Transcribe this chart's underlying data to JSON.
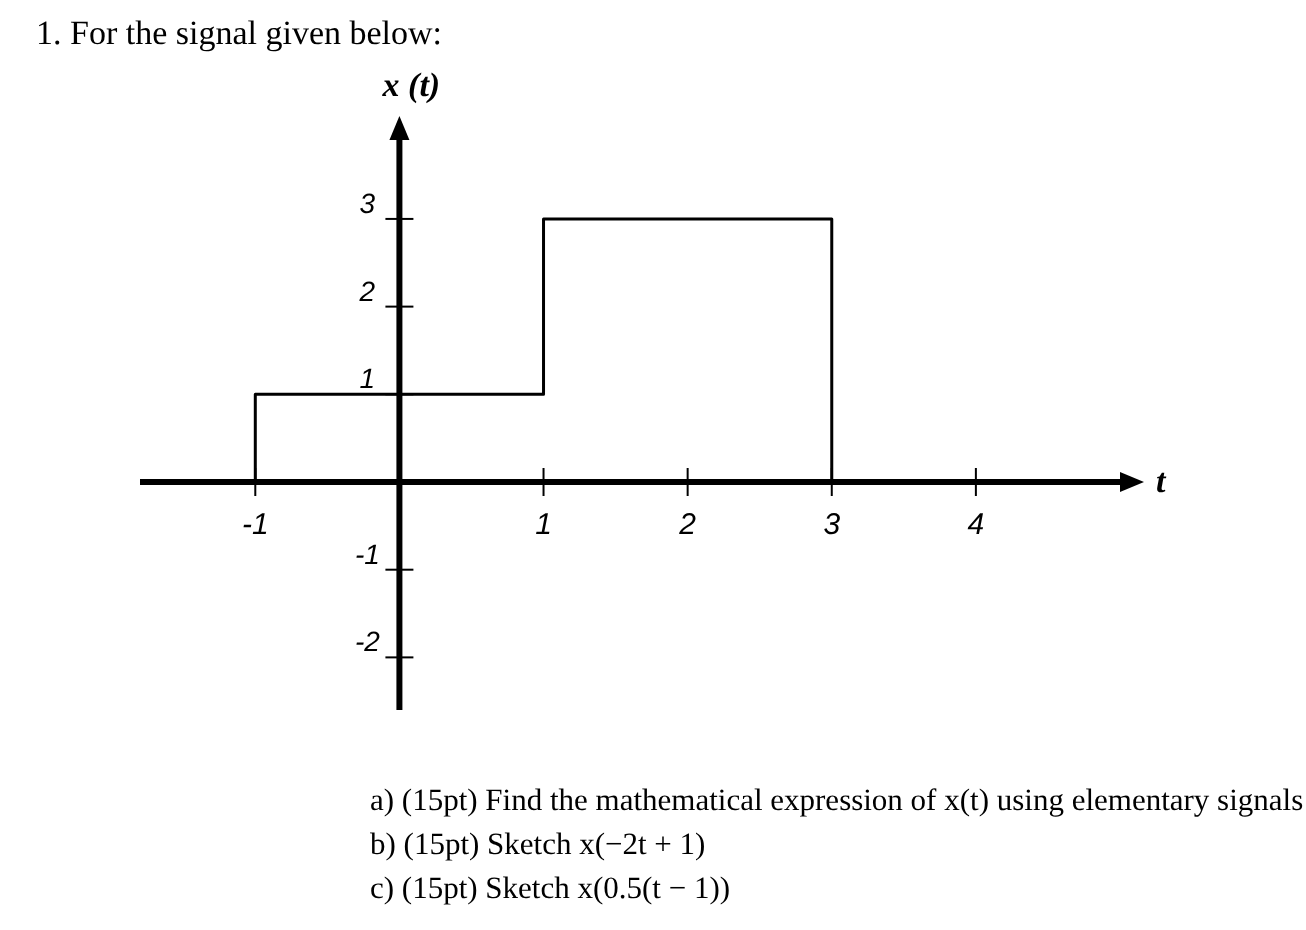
{
  "chart_data": {
    "type": "line",
    "title": "1.  For the signal given below:",
    "ylabel": "x (t)",
    "xlabel": "t",
    "x": [
      -1,
      -1,
      1,
      1,
      3,
      3
    ],
    "series": [
      {
        "color": "#000000",
        "values": [
          0,
          1,
          1,
          3,
          3,
          0
        ]
      }
    ],
    "xlim": [
      -1.8,
      5
    ],
    "ylim": [
      -2.6,
      3.9
    ],
    "xticks": [
      -1,
      1,
      2,
      3,
      4
    ],
    "yticks": [
      -2,
      -1,
      1,
      2,
      3
    ],
    "grid": false,
    "marker": "none",
    "line_style": "solid",
    "annotations": [
      "a) (15pt) Find the mathematical expression of x(t) using elementary signals",
      "b) (15pt) Sketch x(−2t + 1)",
      "c) (15pt) Sketch x(0.5(t − 1))"
    ]
  }
}
